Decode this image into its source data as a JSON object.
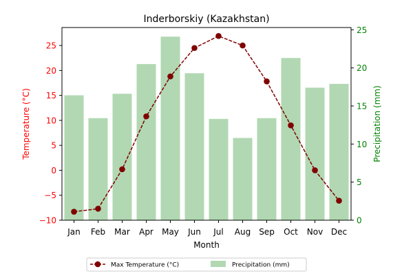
{
  "chart_data": {
    "type": "bar+line",
    "title": "Inderborskiy (Kazakhstan)",
    "xlabel": "Month",
    "categories": [
      "Jan",
      "Feb",
      "Mar",
      "Apr",
      "May",
      "Jun",
      "Jul",
      "Aug",
      "Sep",
      "Oct",
      "Nov",
      "Dec"
    ],
    "y_left": {
      "label": "Temperature (°C)",
      "ticks": [
        "−10",
        "−5",
        "0",
        "5",
        "10",
        "15",
        "20",
        "25"
      ],
      "range": [
        -10,
        28.6
      ],
      "color": "#ff0000"
    },
    "y_right": {
      "label": "Precipitation (mm)",
      "ticks": [
        "0",
        "5",
        "10",
        "15",
        "20",
        "25"
      ],
      "range": [
        0,
        25.3
      ],
      "color": "#008000"
    },
    "series": [
      {
        "name": "Max Temperature (°C)",
        "kind": "line",
        "axis": "left",
        "color": "#800000",
        "values": [
          -8.3,
          -7.7,
          0.2,
          10.8,
          18.8,
          24.5,
          26.9,
          25.0,
          17.8,
          9.0,
          0.0,
          -6.1
        ]
      },
      {
        "name": "Precipitation (mm)",
        "kind": "bar",
        "axis": "right",
        "color": "#b1d8b2",
        "values": [
          16.4,
          13.4,
          16.6,
          20.5,
          24.1,
          19.3,
          13.3,
          10.8,
          13.4,
          21.3,
          17.4,
          17.9
        ]
      }
    ],
    "legend_position": "bottom-center",
    "grid": false
  }
}
